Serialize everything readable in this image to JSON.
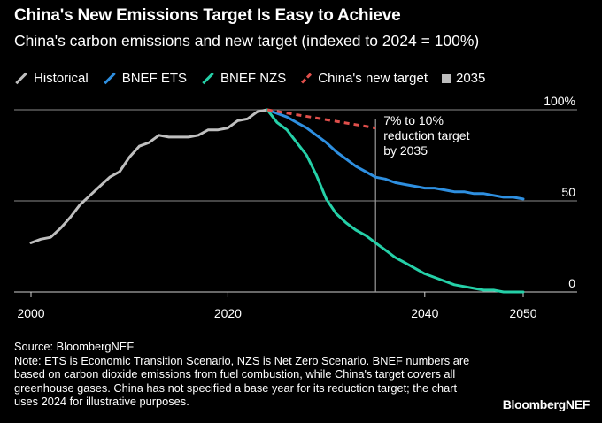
{
  "title": "China's New Emissions Target Is Easy to Achieve",
  "subtitle": "China's carbon emissions and new target (indexed to 2024 = 100%)",
  "legend": [
    {
      "label": "Historical",
      "color": "#bfbfbf",
      "style": "line"
    },
    {
      "label": "BNEF ETS",
      "color": "#2e8fe0",
      "style": "line"
    },
    {
      "label": "BNEF NZS",
      "color": "#25d0a8",
      "style": "line"
    },
    {
      "label": "China's new target",
      "color": "#e04f4b",
      "style": "dashed"
    },
    {
      "label": "2035",
      "color": "#bdbdbd",
      "style": "box"
    }
  ],
  "annotation": [
    "7% to 10%",
    "reduction target",
    "by 2035"
  ],
  "source": "Source: BloombergNEF",
  "note": "Note: ETS is Economic Transition Scenario, NZS is Net Zero Scenario. BNEF numbers are based on carbon dioxide emissions from fuel combustion, while China's target covers all greenhouse gases. China has not specified a base year for its reduction target; the chart uses 2024 for illustrative purposes.",
  "brand": "BloombergNEF",
  "chart_data": {
    "type": "line",
    "title": "China's New Emissions Target Is Easy to Achieve",
    "subtitle": "China's carbon emissions and new target (indexed to 2024 = 100%)",
    "xlim": [
      1999,
      2053
    ],
    "ylim": [
      0,
      100
    ],
    "x_ticks": [
      "2000",
      "2020",
      "2040",
      "2050"
    ],
    "y_ticks": [
      "0",
      "50",
      "100%"
    ],
    "y_tick_values": [
      0,
      50,
      100
    ],
    "grid": "horizontal",
    "vline": {
      "x": 2035,
      "label": "2035"
    },
    "series": [
      {
        "name": "Historical",
        "color": "#bfbfbf",
        "dashed": false,
        "x": [
          2000,
          2001,
          2002,
          2003,
          2004,
          2005,
          2006,
          2007,
          2008,
          2009,
          2010,
          2011,
          2012,
          2013,
          2014,
          2015,
          2016,
          2017,
          2018,
          2019,
          2020,
          2021,
          2022,
          2023,
          2024
        ],
        "y": [
          27,
          29,
          30,
          35,
          41,
          48,
          53,
          58,
          63,
          66,
          74,
          80,
          82,
          86,
          85,
          85,
          85,
          86,
          89,
          89,
          90,
          94,
          95,
          99,
          100
        ]
      },
      {
        "name": "BNEF ETS",
        "color": "#2e8fe0",
        "dashed": false,
        "x": [
          2024,
          2025,
          2026,
          2027,
          2028,
          2029,
          2030,
          2031,
          2032,
          2033,
          2034,
          2035,
          2036,
          2037,
          2038,
          2039,
          2040,
          2041,
          2042,
          2043,
          2044,
          2045,
          2046,
          2047,
          2048,
          2049,
          2050
        ],
        "y": [
          100,
          98,
          96,
          93,
          90,
          86,
          82,
          77,
          73,
          69,
          66,
          63,
          62,
          60,
          59,
          58,
          57,
          57,
          56,
          55,
          55,
          54,
          54,
          53,
          52,
          52,
          51
        ]
      },
      {
        "name": "BNEF NZS",
        "color": "#25d0a8",
        "dashed": false,
        "x": [
          2024,
          2025,
          2026,
          2027,
          2028,
          2029,
          2030,
          2031,
          2032,
          2033,
          2034,
          2035,
          2036,
          2037,
          2038,
          2039,
          2040,
          2041,
          2042,
          2043,
          2044,
          2045,
          2046,
          2047,
          2048,
          2049,
          2050
        ],
        "y": [
          100,
          93,
          89,
          82,
          75,
          64,
          51,
          43,
          38,
          34,
          31,
          27,
          23,
          19,
          16,
          13,
          10,
          8,
          6,
          4,
          3,
          2,
          1,
          1,
          0,
          0,
          0
        ]
      },
      {
        "name": "China's new target",
        "color": "#e04f4b",
        "dashed": true,
        "x": [
          2024,
          2035
        ],
        "y": [
          100,
          90
        ]
      }
    ]
  }
}
